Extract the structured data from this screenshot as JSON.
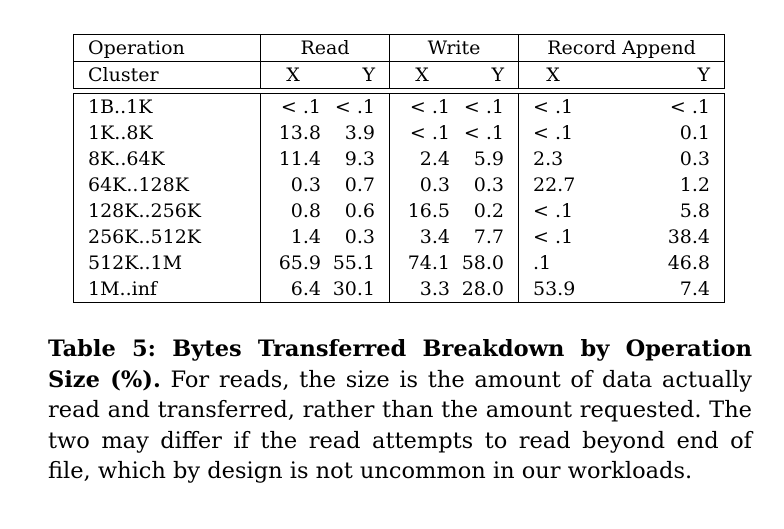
{
  "table": {
    "header_row1": {
      "col1": "Operation",
      "read": "Read",
      "write": "Write",
      "record_append": "Record Append"
    },
    "header_row2": {
      "col1": "Cluster",
      "read_x": "X",
      "read_y": "Y",
      "write_x": "X",
      "write_y": "Y",
      "ra_x": "X",
      "ra_y": "Y"
    },
    "rows": [
      {
        "size": "1B..1K",
        "read_x": "< .1",
        "read_y": "< .1",
        "write_x": "< .1",
        "write_y": "< .1",
        "ra_x": "< .1",
        "ra_y": "< .1"
      },
      {
        "size": "1K..8K",
        "read_x": "13.8",
        "read_y": "3.9",
        "write_x": "< .1",
        "write_y": "< .1",
        "ra_x": "< .1",
        "ra_y": "0.1"
      },
      {
        "size": "8K..64K",
        "read_x": "11.4",
        "read_y": "9.3",
        "write_x": "2.4",
        "write_y": "5.9",
        "ra_x": "2.3",
        "ra_y": "0.3"
      },
      {
        "size": "64K..128K",
        "read_x": "0.3",
        "read_y": "0.7",
        "write_x": "0.3",
        "write_y": "0.3",
        "ra_x": "22.7",
        "ra_y": "1.2"
      },
      {
        "size": "128K..256K",
        "read_x": "0.8",
        "read_y": "0.6",
        "write_x": "16.5",
        "write_y": "0.2",
        "ra_x": "< .1",
        "ra_y": "5.8"
      },
      {
        "size": "256K..512K",
        "read_x": "1.4",
        "read_y": "0.3",
        "write_x": "3.4",
        "write_y": "7.7",
        "ra_x": "< .1",
        "ra_y": "38.4"
      },
      {
        "size": "512K..1M",
        "read_x": "65.9",
        "read_y": "55.1",
        "write_x": "74.1",
        "write_y": "58.0",
        "ra_x": ".1",
        "ra_y": "46.8"
      },
      {
        "size": "1M..inf",
        "read_x": "6.4",
        "read_y": "30.1",
        "write_x": "3.3",
        "write_y": "28.0",
        "ra_x": "53.9",
        "ra_y": "7.4"
      }
    ]
  },
  "caption": {
    "bold": "Table 5:  Bytes Transferred Breakdown by Operation Size (%).",
    "text": "For reads, the size is the amount of data actually read and transferred, rather than the amount requested.  The two may differ if the read attempts to read beyond end of file, which by design is not uncommon in our workloads."
  }
}
